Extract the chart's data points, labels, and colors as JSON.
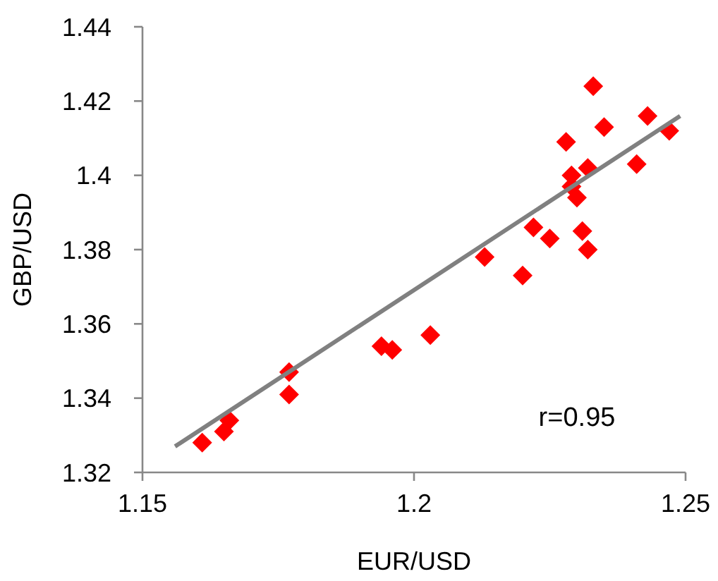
{
  "chart_data": {
    "type": "scatter",
    "xlabel": "EUR/USD",
    "ylabel": "GBP/USD",
    "marker": "diamond",
    "grid": false,
    "xlim": [
      1.15,
      1.25
    ],
    "xticks": [
      1.15,
      1.2,
      1.25
    ],
    "ylim": [
      1.32,
      1.44
    ],
    "yticks": [
      1.32,
      1.34,
      1.36,
      1.38,
      {
        "value": 1.4,
        "label": "1.4"
      },
      1.42,
      1.44
    ],
    "annotations": [
      "r=0.95"
    ],
    "series": [
      {
        "color": "#ff0000",
        "x": [
          1.161,
          1.165,
          1.166,
          1.177,
          1.177,
          1.194,
          1.196,
          1.203,
          1.213,
          1.22,
          1.222,
          1.225,
          1.228,
          1.229,
          1.229,
          1.23,
          1.231,
          1.232,
          1.232,
          1.233,
          1.235,
          1.241,
          1.243,
          1.247
        ],
        "values": [
          1.328,
          1.331,
          1.334,
          1.347,
          1.341,
          1.354,
          1.353,
          1.357,
          1.378,
          1.373,
          1.386,
          1.383,
          1.409,
          1.4,
          1.397,
          1.394,
          1.385,
          1.38,
          1.402,
          1.424,
          1.413,
          1.403,
          1.416,
          1.412
        ]
      },
      {
        "type": "line",
        "color": "#808080",
        "marker": "none",
        "x": [
          1.156,
          1.249
        ],
        "values": [
          1.327,
          1.416
        ]
      }
    ]
  }
}
